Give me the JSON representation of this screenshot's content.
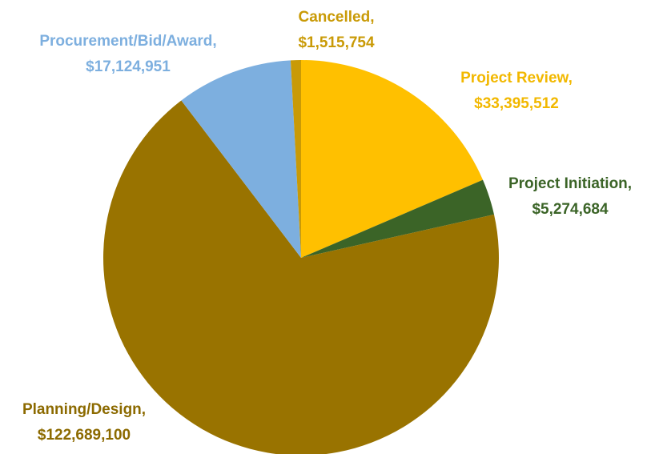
{
  "chart_data": {
    "type": "pie",
    "categories": [
      "Project Review,",
      "Project Initiation,",
      "Planning/Design,",
      "Procurement/Bid/Award,",
      "Cancelled,"
    ],
    "values": [
      33395512,
      5274684,
      122689100,
      17124951,
      1515754
    ],
    "value_labels": [
      "$33,395,512",
      "$5,274,684",
      "$122,689,100",
      "$17,124,951",
      "$1,515,754"
    ],
    "colors": [
      "#ffc000",
      "#3b6427",
      "#997300",
      "#7dafdf",
      "#c99a06"
    ]
  }
}
